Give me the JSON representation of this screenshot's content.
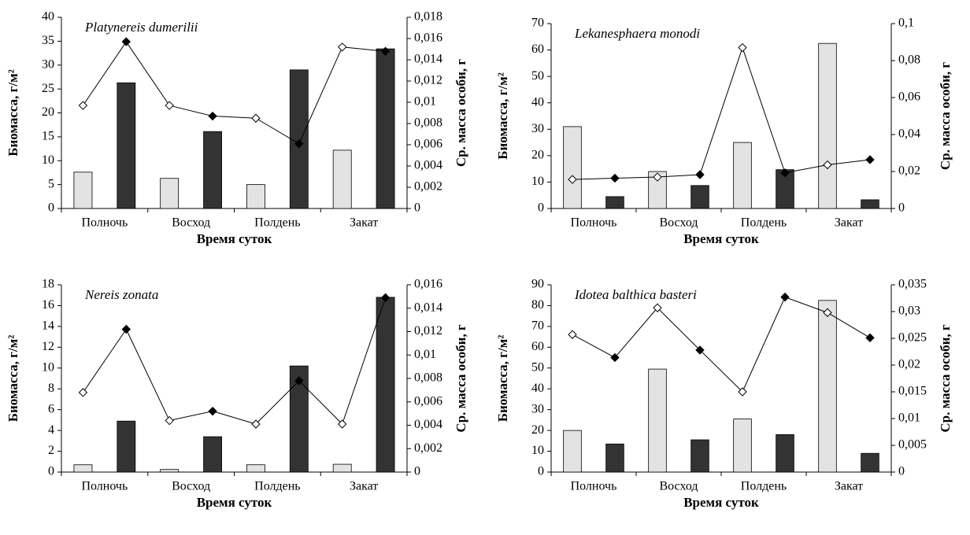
{
  "chart_data": [
    {
      "type": "bar",
      "title": "Platynereis dumerilii",
      "x_label": "Время суток",
      "y_label": "Биомасса, г/м²",
      "y2_label": "Ср. масса особи, г",
      "categories": [
        "Полночь",
        "Восход",
        "Полдень",
        "Закат"
      ],
      "series": [
        {
          "color": "#e3e3e3",
          "values": [
            7.6,
            6.3,
            5.0,
            12.2
          ]
        },
        {
          "color": "#333333",
          "values": [
            26.3,
            16.1,
            29.0,
            33.4
          ]
        },
        {
          "type": "line",
          "axis": "y2",
          "marker": "open",
          "color": "#000000",
          "values": [
            0.0097,
            0.0097,
            0.0085,
            0.0152
          ]
        },
        {
          "type": "line",
          "axis": "y2",
          "marker": "filled",
          "color": "#000000",
          "values": [
            0.0157,
            0.0087,
            0.0061,
            0.0148
          ]
        }
      ],
      "ylim": [
        0,
        40
      ],
      "yticks": [
        0,
        5,
        10,
        15,
        20,
        25,
        30,
        35,
        40
      ],
      "y2lim": [
        0,
        0.018
      ],
      "y2ticks": [
        0,
        {
          "value": 0.002,
          "label": "0,002"
        },
        {
          "value": 0.004,
          "label": "0,004"
        },
        {
          "value": 0.006,
          "label": "0,006"
        },
        {
          "value": 0.008,
          "label": "0,008"
        },
        {
          "value": 0.01,
          "label": "0,01"
        },
        {
          "value": 0.012,
          "label": "0,012"
        },
        {
          "value": 0.014,
          "label": "0,014"
        },
        {
          "value": 0.016,
          "label": "0,016"
        },
        {
          "value": 0.018,
          "label": "0,018"
        }
      ]
    },
    {
      "type": "bar",
      "title": "Lekanesphaera monodi",
      "x_label": "Время суток",
      "y_label": "Биомасса, г/м²",
      "y2_label": "Ср. масса особи, г",
      "categories": [
        "Полночь",
        "Восход",
        "Полдень",
        "Закат"
      ],
      "series": [
        {
          "color": "#e3e3e3",
          "values": [
            31,
            14,
            25,
            62.5
          ]
        },
        {
          "color": "#333333",
          "values": [
            4.5,
            8.7,
            14.7,
            3.3
          ]
        },
        {
          "type": "line",
          "axis": "y2",
          "marker": "open",
          "color": "#000000",
          "values": [
            0.0157,
            0.017,
            0.087,
            0.0236
          ]
        },
        {
          "type": "line",
          "axis": "y2",
          "marker": "filled",
          "color": "#000000",
          "values": [
            0.0164,
            0.0183,
            0.0193,
            0.0264
          ]
        }
      ],
      "ylim": [
        0,
        70
      ],
      "yticks": [
        0,
        10,
        20,
        30,
        40,
        50,
        60,
        70
      ],
      "y2lim": [
        0,
        0.1
      ],
      "y2ticks": [
        0,
        {
          "value": 0.02,
          "label": "0,02"
        },
        {
          "value": 0.04,
          "label": "0,04"
        },
        {
          "value": 0.06,
          "label": "0,06"
        },
        {
          "value": 0.08,
          "label": "0,08"
        },
        {
          "value": 0.1,
          "label": "0,1"
        }
      ]
    },
    {
      "type": "bar",
      "title": "Nereis zonata",
      "x_label": "Время суток",
      "y_label": "Биомасса, г/м²",
      "y2_label": "Ср. масса особи, г",
      "categories": [
        "Полночь",
        "Восход",
        "Полдень",
        "Закат"
      ],
      "series": [
        {
          "color": "#e3e3e3",
          "values": [
            0.7,
            0.25,
            0.7,
            0.75
          ]
        },
        {
          "color": "#333333",
          "values": [
            4.9,
            3.4,
            10.2,
            16.8
          ]
        },
        {
          "type": "line",
          "axis": "y2",
          "marker": "open",
          "color": "#000000",
          "values": [
            0.0068,
            0.0044,
            0.0041,
            0.0041
          ]
        },
        {
          "type": "line",
          "axis": "y2",
          "marker": "filled",
          "color": "#000000",
          "values": [
            0.0122,
            0.0052,
            0.0078,
            0.0149
          ]
        }
      ],
      "ylim": [
        0,
        18
      ],
      "yticks": [
        0,
        2,
        4,
        6,
        8,
        10,
        12,
        14,
        16,
        18
      ],
      "y2lim": [
        0,
        0.016
      ],
      "y2ticks": [
        0,
        {
          "value": 0.002,
          "label": "0,002"
        },
        {
          "value": 0.004,
          "label": "0,004"
        },
        {
          "value": 0.006,
          "label": "0,006"
        },
        {
          "value": 0.008,
          "label": "0,008"
        },
        {
          "value": 0.01,
          "label": "0,01"
        },
        {
          "value": 0.012,
          "label": "0,012"
        },
        {
          "value": 0.014,
          "label": "0,014"
        },
        {
          "value": 0.016,
          "label": "0,016"
        }
      ]
    },
    {
      "type": "bar",
      "title": "Idotea balthica basteri",
      "x_label": "Время суток",
      "y_label": "Биомасса, г/м²",
      "y2_label": "Ср. масса особи, г",
      "categories": [
        "Полночь",
        "Восход",
        "Полдень",
        "Закат"
      ],
      "series": [
        {
          "color": "#e3e3e3",
          "values": [
            20,
            49.5,
            25.5,
            82.5
          ]
        },
        {
          "color": "#333333",
          "values": [
            13.5,
            15.5,
            18,
            9
          ]
        },
        {
          "type": "line",
          "axis": "y2",
          "marker": "open",
          "color": "#000000",
          "values": [
            0.0257,
            0.0307,
            0.015,
            0.0298
          ]
        },
        {
          "type": "line",
          "axis": "y2",
          "marker": "filled",
          "color": "#000000",
          "values": [
            0.0214,
            0.0228,
            0.0327,
            0.0251
          ]
        }
      ],
      "ylim": [
        0,
        90
      ],
      "yticks": [
        0,
        10,
        20,
        30,
        40,
        50,
        60,
        70,
        80,
        90
      ],
      "y2lim": [
        0,
        0.035
      ],
      "y2ticks": [
        0,
        {
          "value": 0.005,
          "label": "0,005"
        },
        {
          "value": 0.01,
          "label": "0,01"
        },
        {
          "value": 0.015,
          "label": "0,015"
        },
        {
          "value": 0.02,
          "label": "0,02"
        },
        {
          "value": 0.025,
          "label": "0,025"
        },
        {
          "value": 0.03,
          "label": "0,03"
        },
        {
          "value": 0.035,
          "label": "0,035"
        }
      ]
    }
  ]
}
